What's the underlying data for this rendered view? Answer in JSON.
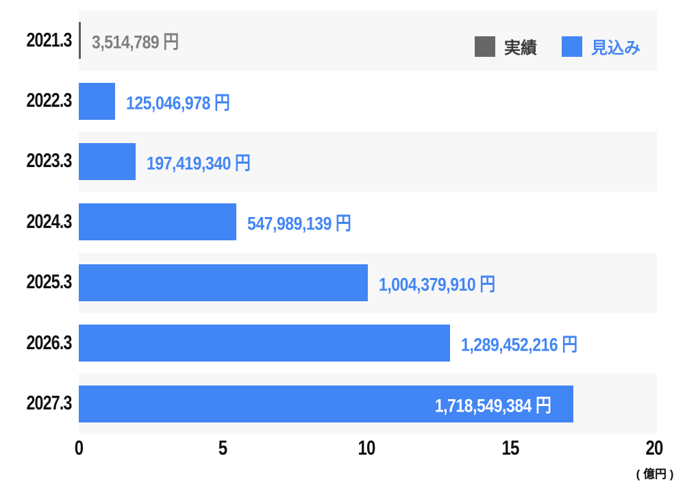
{
  "chart_data": {
    "type": "bar",
    "orientation": "horizontal",
    "title": "",
    "categories": [
      "2021.3",
      "2022.3",
      "2023.3",
      "2024.3",
      "2025.3",
      "2026.3",
      "2027.3"
    ],
    "series_names": [
      "実績",
      "見込み"
    ],
    "rows": [
      {
        "year": "2021.3",
        "series": "実績",
        "value_yen": 3514789,
        "label": "3,514,789 円"
      },
      {
        "year": "2022.3",
        "series": "見込み",
        "value_yen": 125046978,
        "label": "125,046,978 円"
      },
      {
        "year": "2023.3",
        "series": "見込み",
        "value_yen": 197419340,
        "label": "197,419,340 円"
      },
      {
        "year": "2024.3",
        "series": "見込み",
        "value_yen": 547989139,
        "label": "547,989,139 円"
      },
      {
        "year": "2025.3",
        "series": "見込み",
        "value_yen": 1004379910,
        "label": "1,004,379,910 円"
      },
      {
        "year": "2026.3",
        "series": "見込み",
        "value_yen": 1289452216,
        "label": "1,289,452,216 円"
      },
      {
        "year": "2027.3",
        "series": "見込み",
        "value_yen": 1718549384,
        "label": "1,718,549,384 円"
      }
    ],
    "x_ticks": [
      0,
      5,
      10,
      15,
      20
    ],
    "x_tick_labels": [
      "0",
      "5",
      "10",
      "15",
      "20"
    ],
    "xlim": [
      0,
      20
    ],
    "x_unit_label": "( 億円 )",
    "x_axis_unit_oku_yen": 100000000,
    "grid": false,
    "legend_position": "top-right",
    "row_striping": "alternate, starting with first row"
  },
  "legend": {
    "actual_label": "実績",
    "forecast_label": "見込み"
  },
  "colors": {
    "forecast_blue": "#4285f4",
    "actual_gray": "#5e5e5e",
    "legend_actual_swatch": "#666666",
    "value_text_blue": "#4285f4",
    "value_text_gray": "#7f7f7f",
    "label_black": "#111111",
    "row_stripe": "#f7f7f7",
    "inside_label_white": "#ffffff",
    "background": "#ffffff"
  }
}
